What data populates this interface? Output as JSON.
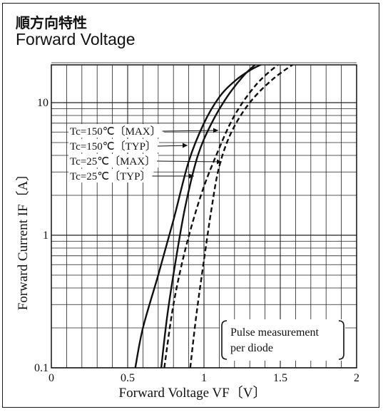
{
  "title_jp": "順方向特性",
  "title_en": "Forward Voltage",
  "chart_data": {
    "type": "line",
    "xlabel": "Forward Voltage VF〔V〕",
    "ylabel": "Forward Current IF〔A〕",
    "xlim": [
      0,
      2
    ],
    "ylim": [
      0.1,
      20
    ],
    "yscale": "log",
    "grid": true,
    "x_ticks": [
      "0",
      "0.5",
      "1",
      "1.5",
      "2"
    ],
    "y_ticks": [
      "0.1",
      "1",
      "10"
    ],
    "note": [
      "Pulse measurement",
      "per diode"
    ],
    "series": [
      {
        "name": "Tc=150℃〔MAX〕",
        "style": "dashed",
        "points": [
          [
            0.74,
            0.1
          ],
          [
            0.8,
            0.3
          ],
          [
            0.88,
            0.8
          ],
          [
            0.98,
            2.0
          ],
          [
            1.08,
            4.0
          ],
          [
            1.2,
            8.0
          ],
          [
            1.35,
            14
          ],
          [
            1.5,
            20
          ]
        ]
      },
      {
        "name": "Tc=150℃〔TYP〕",
        "style": "solid",
        "points": [
          [
            0.55,
            0.1
          ],
          [
            0.6,
            0.2
          ],
          [
            0.7,
            0.5
          ],
          [
            0.8,
            1.3
          ],
          [
            0.9,
            3.6
          ],
          [
            1.0,
            7.0
          ],
          [
            1.1,
            11
          ],
          [
            1.2,
            14.5
          ],
          [
            1.3,
            17.5
          ],
          [
            1.4,
            20
          ]
        ]
      },
      {
        "name": "Tc=25℃〔MAX〕",
        "style": "dashed",
        "points": [
          [
            0.91,
            0.1
          ],
          [
            0.95,
            0.25
          ],
          [
            1.0,
            0.65
          ],
          [
            1.05,
            1.6
          ],
          [
            1.1,
            3.3
          ],
          [
            1.18,
            6.0
          ],
          [
            1.3,
            10
          ],
          [
            1.45,
            15
          ],
          [
            1.6,
            20
          ]
        ]
      },
      {
        "name": "Tc=25℃〔TYP〕",
        "style": "solid",
        "points": [
          [
            0.72,
            0.1
          ],
          [
            0.76,
            0.25
          ],
          [
            0.82,
            0.7
          ],
          [
            0.88,
            1.7
          ],
          [
            0.96,
            4.0
          ],
          [
            1.05,
            7.0
          ],
          [
            1.15,
            11
          ],
          [
            1.26,
            16
          ],
          [
            1.35,
            20
          ]
        ]
      }
    ]
  }
}
